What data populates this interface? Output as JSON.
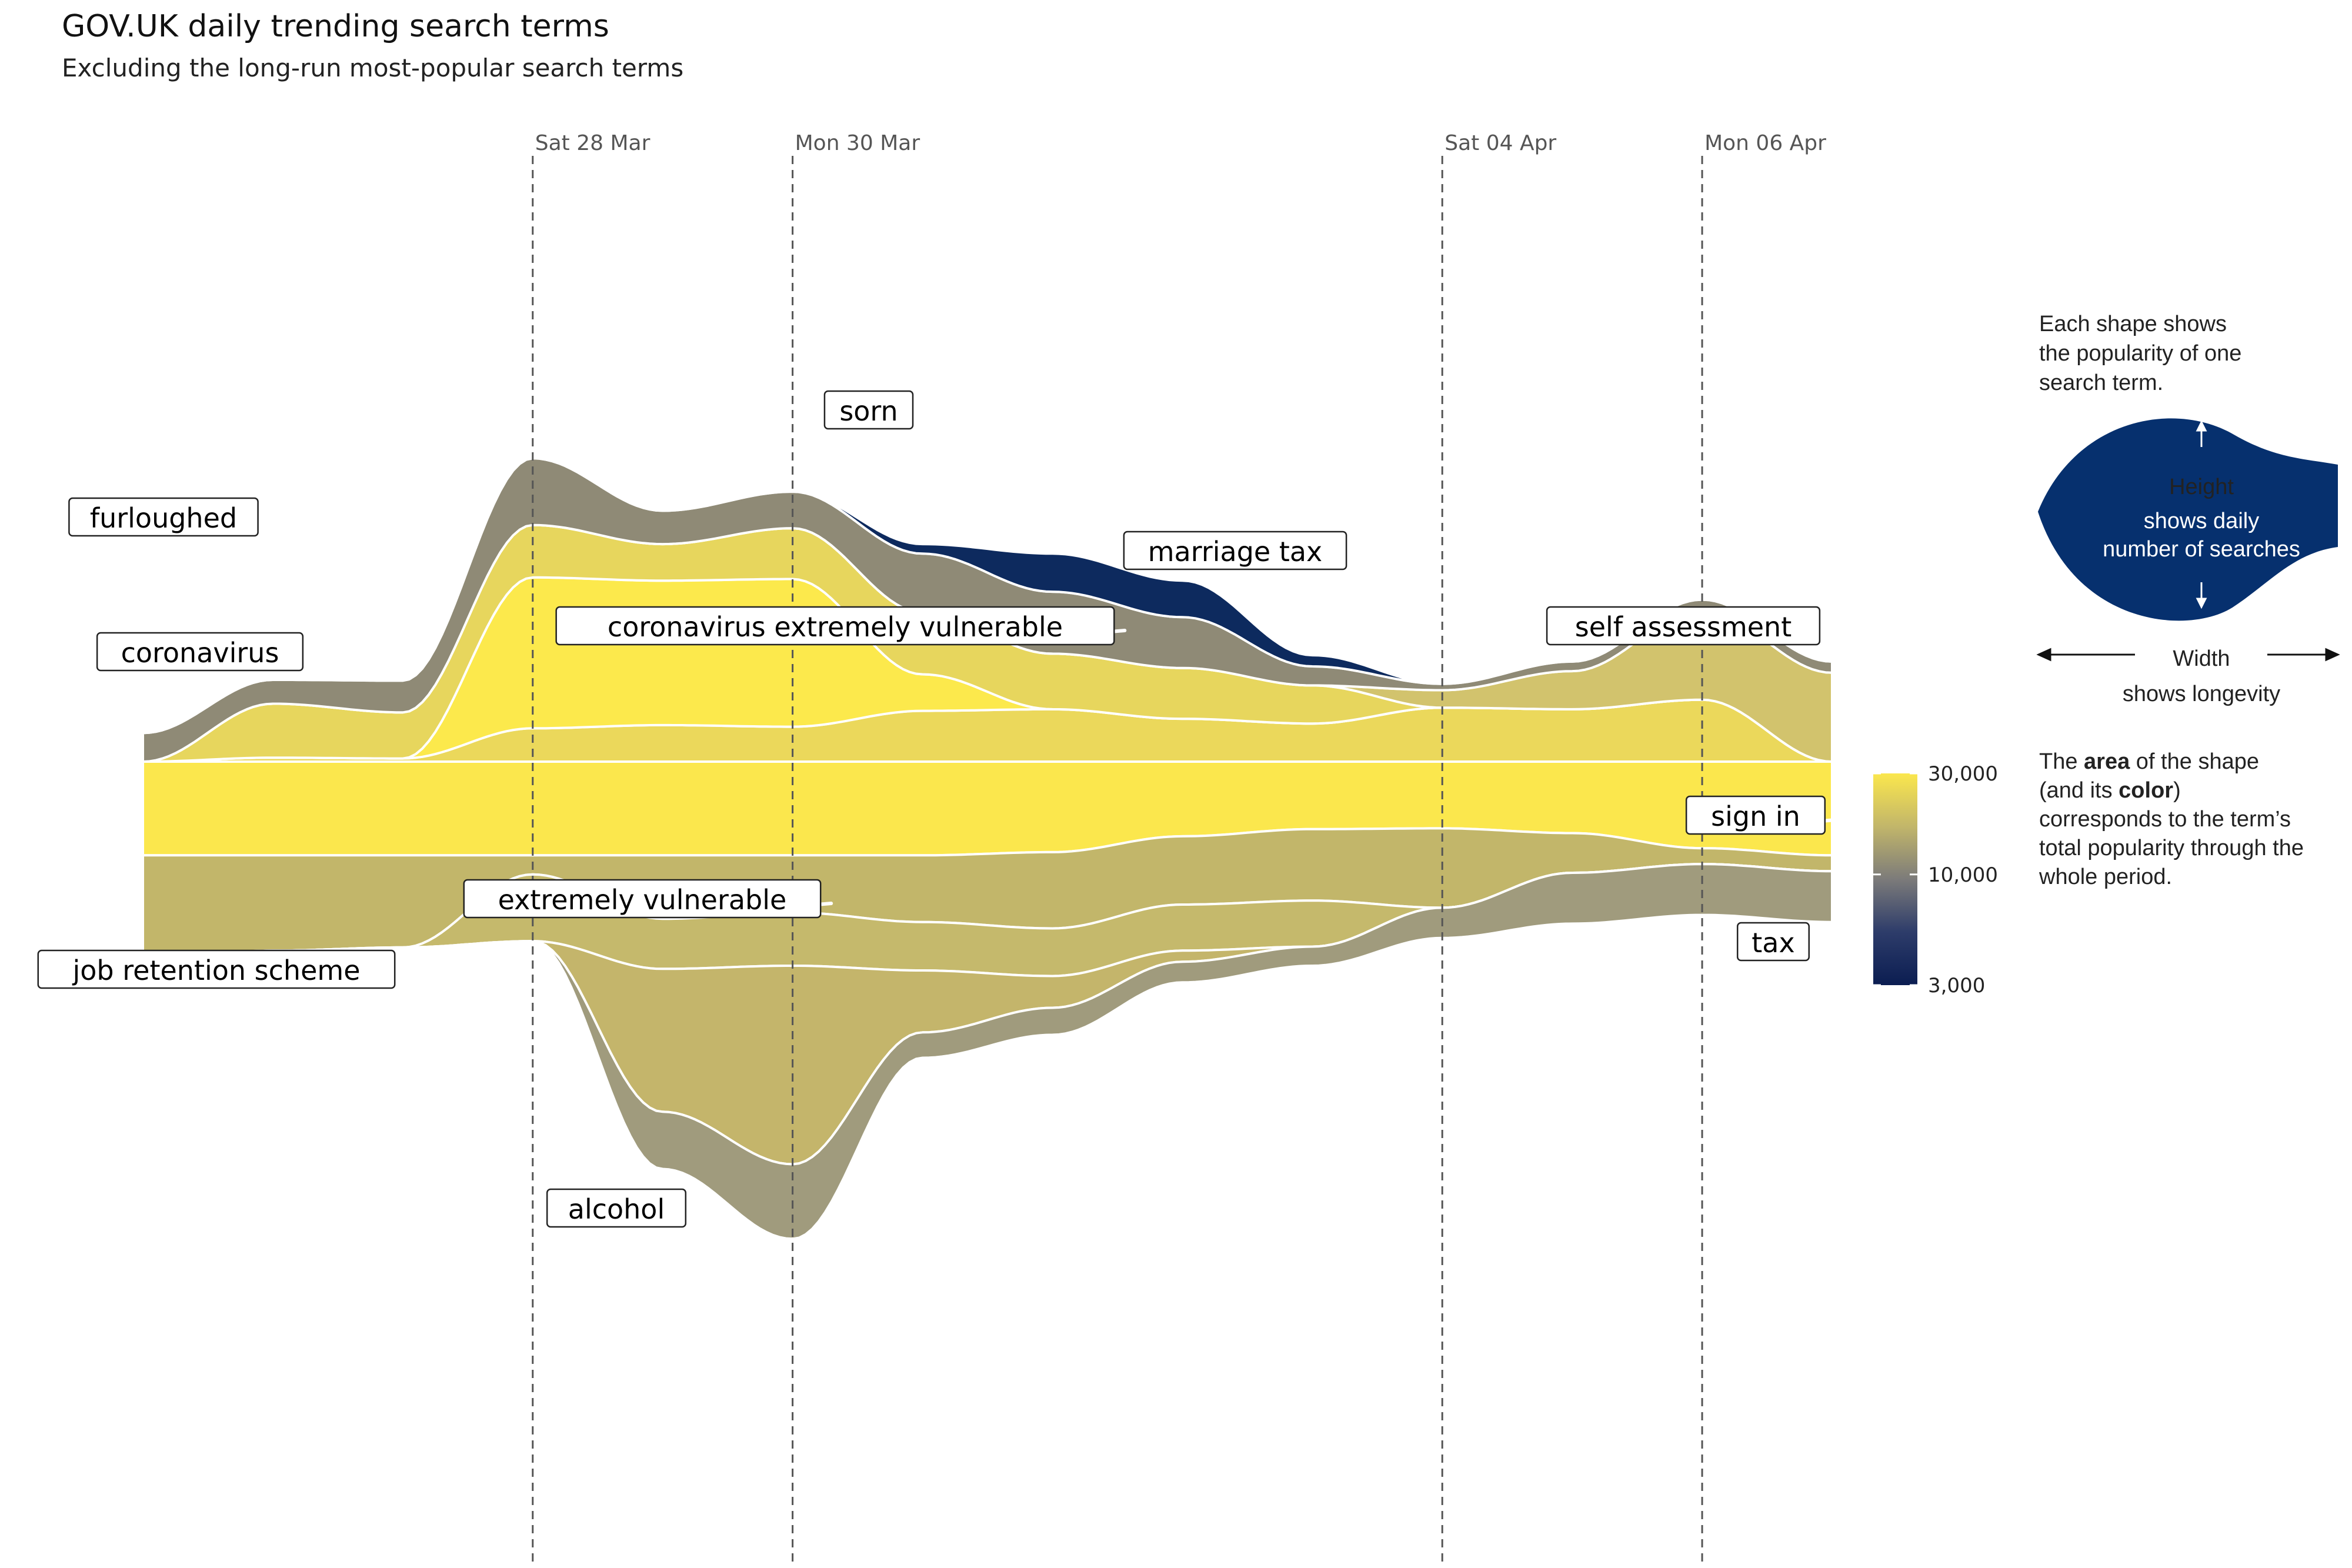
{
  "title": "GOV.UK daily trending search terms",
  "subtitle": "Excluding the long-run most-popular search terms",
  "chart_data": {
    "type": "area",
    "subtype": "streamgraph",
    "x_dates": [
      "2020-03-25",
      "2020-03-26",
      "2020-03-27",
      "2020-03-28",
      "2020-03-29",
      "2020-03-30",
      "2020-03-31",
      "2020-04-01",
      "2020-04-02",
      "2020-04-03",
      "2020-04-04",
      "2020-04-05",
      "2020-04-06",
      "2020-04-07"
    ],
    "date_ticks": [
      {
        "date": "2020-03-28",
        "label": "Sat 28 Mar"
      },
      {
        "date": "2020-03-30",
        "label": "Mon 30 Mar"
      },
      {
        "date": "2020-04-04",
        "label": "Sat 04 Apr"
      },
      {
        "date": "2020-04-06",
        "label": "Mon 06 Apr"
      }
    ],
    "series": [
      {
        "name": "sign in",
        "color": "#fbe74d",
        "values": [
          11800,
          11800,
          11800,
          11800,
          11800,
          11800,
          11800,
          11400,
          9400,
          8500,
          8400,
          9000,
          10900,
          11800
        ]
      },
      {
        "name": "coronavirus",
        "color": "#ebd85b",
        "values": [
          0,
          500,
          400,
          4200,
          4600,
          4400,
          6400,
          6600,
          5400,
          4800,
          6800,
          6600,
          7800,
          0
        ]
      },
      {
        "name": "coronavirus extremely vulnerable",
        "color": "#fce94c",
        "values": [
          0,
          0,
          0,
          19000,
          18200,
          18600,
          4600,
          0,
          0,
          0,
          0,
          0,
          0,
          0
        ]
      },
      {
        "name": "furloughed",
        "color": "#e7d65d",
        "values": [
          0,
          6800,
          5800,
          6600,
          4600,
          6400,
          7800,
          7000,
          6400,
          4800,
          0,
          0,
          0,
          0
        ]
      },
      {
        "name": "self assessment",
        "color": "#d2c36d",
        "values": [
          0,
          0,
          0,
          0,
          0,
          0,
          0,
          0,
          0,
          0,
          2200,
          4800,
          11200,
          11200
        ]
      },
      {
        "name": "job retention scheme",
        "color": "#c2b66a",
        "values": [
          13000,
          12000,
          11600,
          2400,
          8000,
          7200,
          8400,
          9600,
          8600,
          9000,
          10000,
          5000,
          2000,
          2000
        ]
      },
      {
        "name": "sorn",
        "color": "#8f8a76",
        "values": [
          3600,
          3000,
          4000,
          8400,
          4200,
          4600,
          7400,
          7800,
          6400,
          2400,
          800,
          1200,
          1400,
          1400
        ]
      },
      {
        "name": "marriage tax",
        "color": "#0d2a5e",
        "values": [
          0,
          0,
          0,
          0,
          0,
          0,
          1200,
          4800,
          4600,
          1400,
          0,
          0,
          0,
          0
        ]
      },
      {
        "name": "extremely vulnerable",
        "color": "#c5b96c",
        "values": [
          0,
          0,
          0,
          8400,
          6300,
          6700,
          6100,
          6000,
          5800,
          5800,
          0,
          0,
          0,
          0
        ]
      },
      {
        "name": "alcohol",
        "color": "#c4b56b",
        "values": [
          0,
          0,
          0,
          0,
          18000,
          25000,
          7800,
          4000,
          1400,
          0,
          0,
          0,
          0,
          0
        ]
      },
      {
        "name": "tax",
        "color": "#a09b7d",
        "values": [
          0,
          0,
          0,
          0,
          7200,
          9400,
          3200,
          3400,
          2600,
          2400,
          3800,
          6400,
          6400,
          6400
        ]
      }
    ],
    "legend": {
      "title": "",
      "type": "continuous",
      "scale": "log",
      "range": [
        3000,
        30000
      ],
      "ticks": [
        3000,
        10000,
        30000
      ],
      "tick_labels": [
        "3,000",
        "10,000",
        "30,000"
      ],
      "colors": [
        "#0b1d51",
        "#2d3c6a",
        "#7c7b7a",
        "#c2b66a",
        "#fbe74d"
      ],
      "position": "right"
    },
    "grid": false
  },
  "labels": [
    {
      "key": "furloughed",
      "text": "furloughed"
    },
    {
      "key": "coronavirus",
      "text": "coronavirus"
    },
    {
      "key": "coronavirus-extremely-vulnerable",
      "text": "coronavirus extremely vulnerable"
    },
    {
      "key": "sorn",
      "text": "sorn"
    },
    {
      "key": "marriage-tax",
      "text": "marriage tax"
    },
    {
      "key": "self-assessment",
      "text": "self assessment"
    },
    {
      "key": "sign-in",
      "text": "sign in"
    },
    {
      "key": "tax",
      "text": "tax"
    },
    {
      "key": "extremely-vulnerable",
      "text": "extremely vulnerable"
    },
    {
      "key": "job-retention-scheme",
      "text": "job retention scheme"
    },
    {
      "key": "alcohol",
      "text": "alcohol"
    }
  ],
  "explainer": {
    "intro_lines": [
      "Each shape shows",
      "the popularity of one",
      "search term."
    ],
    "height_title": "Height",
    "height_lines": [
      "shows daily",
      "number of searches"
    ],
    "width_title": "Width",
    "width_sub": "shows longevity",
    "area_lines": [
      [
        {
          "t": "The ",
          "b": false
        },
        {
          "t": "area",
          "b": true
        },
        {
          "t": " of the shape",
          "b": false
        }
      ],
      [
        {
          "t": "(and its ",
          "b": false
        },
        {
          "t": "color",
          "b": true
        },
        {
          "t": ")",
          "b": false
        }
      ],
      [
        {
          "t": "corresponds to the term’s",
          "b": false
        }
      ],
      [
        {
          "t": "total popularity through the",
          "b": false
        }
      ],
      [
        {
          "t": "whole period.",
          "b": false
        }
      ]
    ],
    "shape_color": "#06306e"
  }
}
